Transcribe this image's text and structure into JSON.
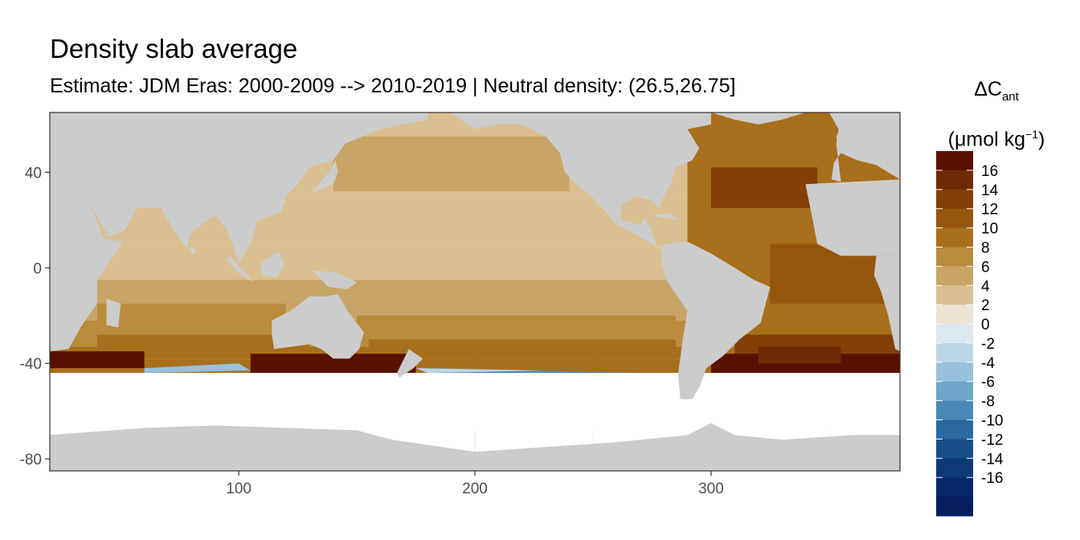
{
  "chart_data": {
    "type": "heatmap",
    "title": "Density slab average",
    "subtitle": "Estimate: JDM Eras: 2000-2009 --> 2010-2019 | Neutral density: (26.5,26.75]",
    "xlabel": "",
    "ylabel": "",
    "xlim": [
      20,
      380
    ],
    "ylim": [
      -85,
      65
    ],
    "x_ticks": [
      100,
      200,
      300
    ],
    "y_ticks": [
      40,
      0,
      -40,
      -80
    ],
    "grid": true,
    "legend": {
      "title_main": "ΔC",
      "title_sub": "ant",
      "unit_prefix": "(μmol kg",
      "unit_sup": "−1",
      "unit_suffix": ")",
      "position": "right",
      "labels": [
        "16",
        "14",
        "12",
        "10",
        "8",
        "6",
        "4",
        "2",
        "0",
        "-2",
        "-4",
        "-6",
        "-8",
        "-10",
        "-12",
        "-14",
        "-16"
      ],
      "colors": [
        "#5a1000",
        "#6f2a04",
        "#843f07",
        "#96560c",
        "#a86f1c",
        "#b98c3c",
        "#c8a566",
        "#d9bf8f",
        "#ece3d4",
        "#dbe8f0",
        "#bcd6e6",
        "#97c0da",
        "#6fa6cc",
        "#4a88b8",
        "#2b6aa1",
        "#174f8a",
        "#0c3a78",
        "#06286a",
        "#041e5e"
      ]
    },
    "colors": {
      "land": "#cccccc",
      "no_data": "#ffffff",
      "grid": "#ebebeb",
      "panel_border": "#333333"
    }
  }
}
